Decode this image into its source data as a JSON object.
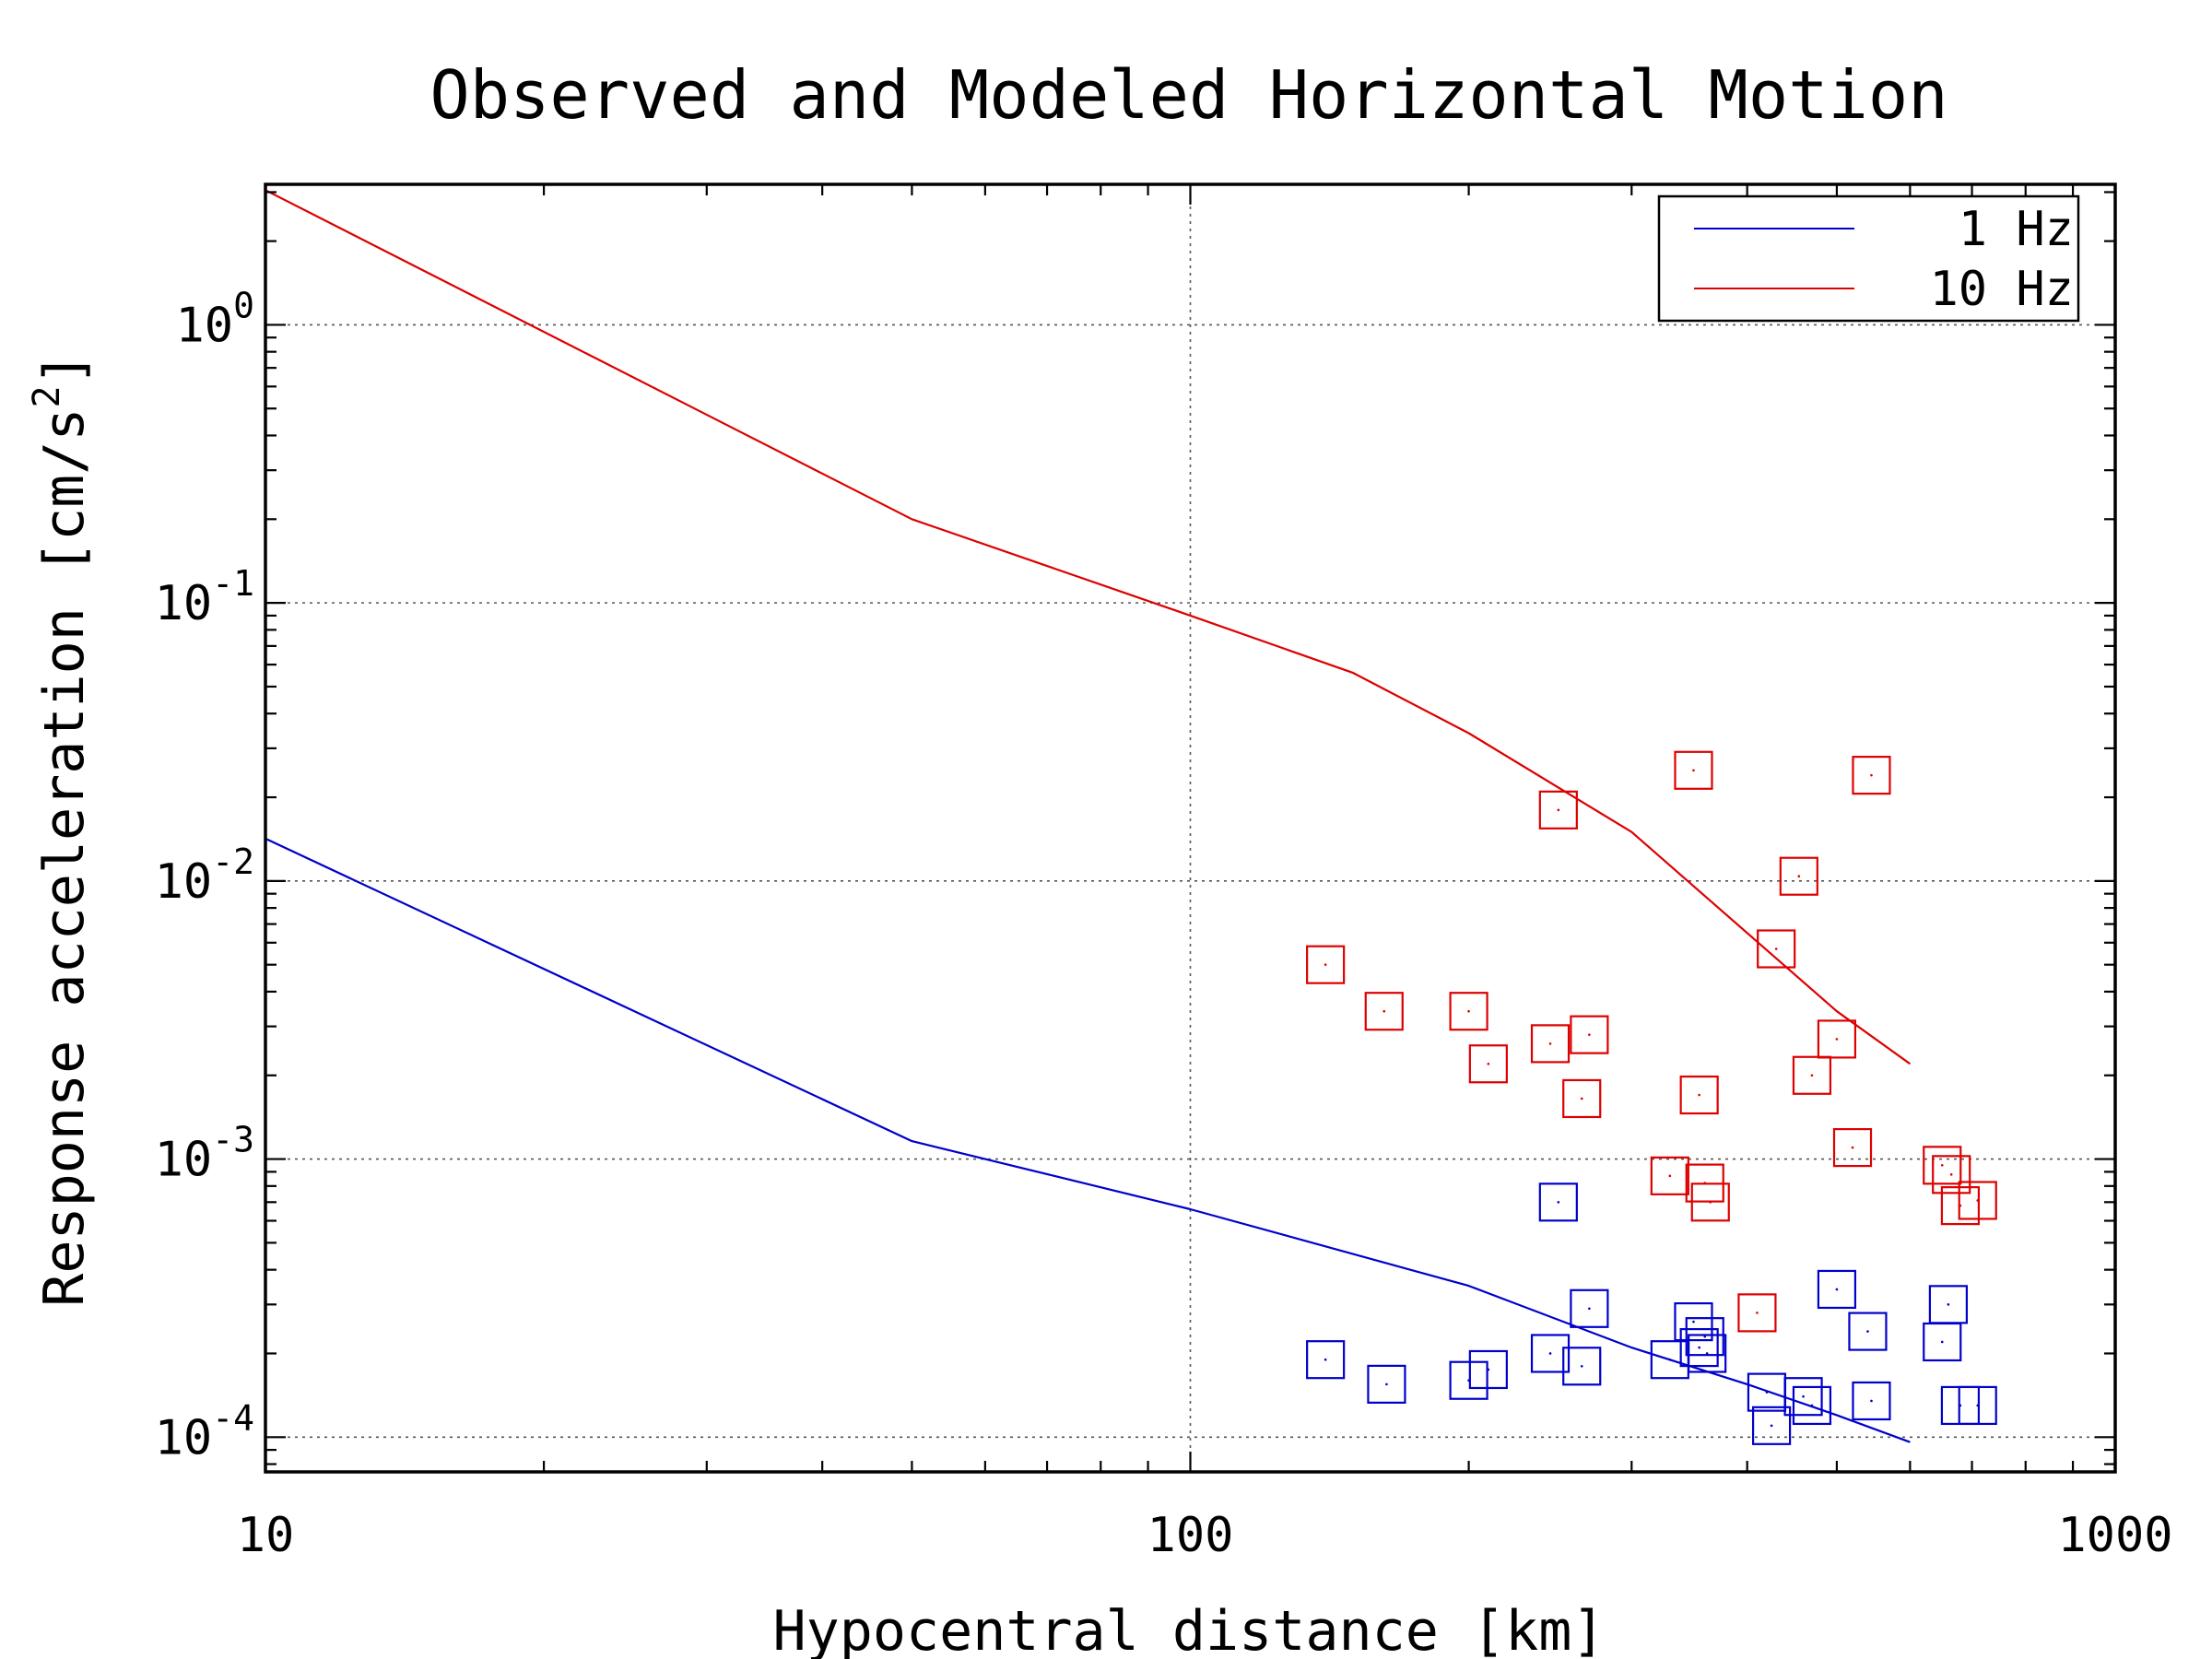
{
  "chart_data": {
    "type": "scatter",
    "title": "Observed and Modeled Horizontal Motion",
    "xlabel": "Hypocentral distance [km]",
    "ylabel": "Response acceleration [cm/s",
    "ylabel_superscript": "2",
    "ylabel_suffix": "]",
    "x_scale": "log",
    "y_scale": "log",
    "xlim": [
      10,
      1000
    ],
    "ylim": [
      7.5e-05,
      3.2
    ],
    "grid": true,
    "legend_position": "top-right",
    "x_ticks": [
      {
        "value": 10,
        "label": "10"
      },
      {
        "value": 100,
        "label": "100"
      },
      {
        "value": 1000,
        "label": "1000"
      }
    ],
    "y_ticks": [
      {
        "value": 1,
        "base": "10",
        "exponent": "0"
      },
      {
        "value": 0.1,
        "base": "10",
        "exponent": "-1"
      },
      {
        "value": 0.01,
        "base": "10",
        "exponent": "-2"
      },
      {
        "value": 0.001,
        "base": "10",
        "exponent": "-3"
      },
      {
        "value": 0.0001,
        "base": "10",
        "exponent": "-4"
      }
    ],
    "legend": [
      {
        "label": "1 Hz",
        "color": "#0000cc"
      },
      {
        "label": "10 Hz",
        "color": "#dd0000"
      }
    ],
    "model_curves": [
      {
        "name": "1 Hz",
        "color": "#0000cc",
        "points": [
          [
            10,
            0.0142
          ],
          [
            50,
            0.00116
          ],
          [
            100,
            0.00066
          ],
          [
            200,
            0.00035
          ],
          [
            300,
            0.00021
          ],
          [
            400,
            0.000155
          ],
          [
            500,
            0.00012
          ],
          [
            600,
            9.6e-05
          ]
        ]
      },
      {
        "name": "10 Hz",
        "color": "#dd0000",
        "points": [
          [
            10,
            3.05
          ],
          [
            50,
            0.2
          ],
          [
            100,
            0.09
          ],
          [
            150,
            0.056
          ],
          [
            200,
            0.034
          ],
          [
            300,
            0.015
          ],
          [
            400,
            0.0065
          ],
          [
            500,
            0.0034
          ],
          [
            600,
            0.0022
          ]
        ]
      }
    ],
    "observed_points": [
      {
        "name": "1 Hz",
        "color": "#0000cc",
        "points": [
          [
            140,
            0.00019
          ],
          [
            163,
            0.000155
          ],
          [
            200,
            0.00016
          ],
          [
            210,
            0.000175
          ],
          [
            245,
            0.0002
          ],
          [
            250,
            0.0007
          ],
          [
            265,
            0.00018
          ],
          [
            270,
            0.00029
          ],
          [
            330,
            0.00019
          ],
          [
            350,
            0.00026
          ],
          [
            355,
            0.00021
          ],
          [
            360,
            0.00023
          ],
          [
            362,
            0.0002
          ],
          [
            420,
            0.000145
          ],
          [
            425,
            0.00011
          ],
          [
            460,
            0.00014
          ],
          [
            470,
            0.00013
          ],
          [
            500,
            0.00034
          ],
          [
            540,
            0.00024
          ],
          [
            545,
            0.000135
          ],
          [
            650,
            0.00022
          ],
          [
            660,
            0.0003
          ],
          [
            680,
            0.00013
          ],
          [
            710,
            0.00013
          ]
        ]
      },
      {
        "name": "10 Hz",
        "color": "#dd0000",
        "points": [
          [
            140,
            0.005
          ],
          [
            162,
            0.0034
          ],
          [
            200,
            0.0034
          ],
          [
            210,
            0.0022
          ],
          [
            245,
            0.0026
          ],
          [
            250,
            0.018
          ],
          [
            265,
            0.00165
          ],
          [
            270,
            0.0028
          ],
          [
            330,
            0.00087
          ],
          [
            350,
            0.025
          ],
          [
            355,
            0.0017
          ],
          [
            360,
            0.00082
          ],
          [
            365,
            0.0007
          ],
          [
            410,
            0.00028
          ],
          [
            430,
            0.0057
          ],
          [
            455,
            0.0104
          ],
          [
            470,
            0.002
          ],
          [
            500,
            0.0027
          ],
          [
            520,
            0.0011
          ],
          [
            545,
            0.024
          ],
          [
            650,
            0.00095
          ],
          [
            665,
            0.00088
          ],
          [
            680,
            0.00068
          ],
          [
            710,
            0.00071
          ]
        ]
      }
    ]
  }
}
